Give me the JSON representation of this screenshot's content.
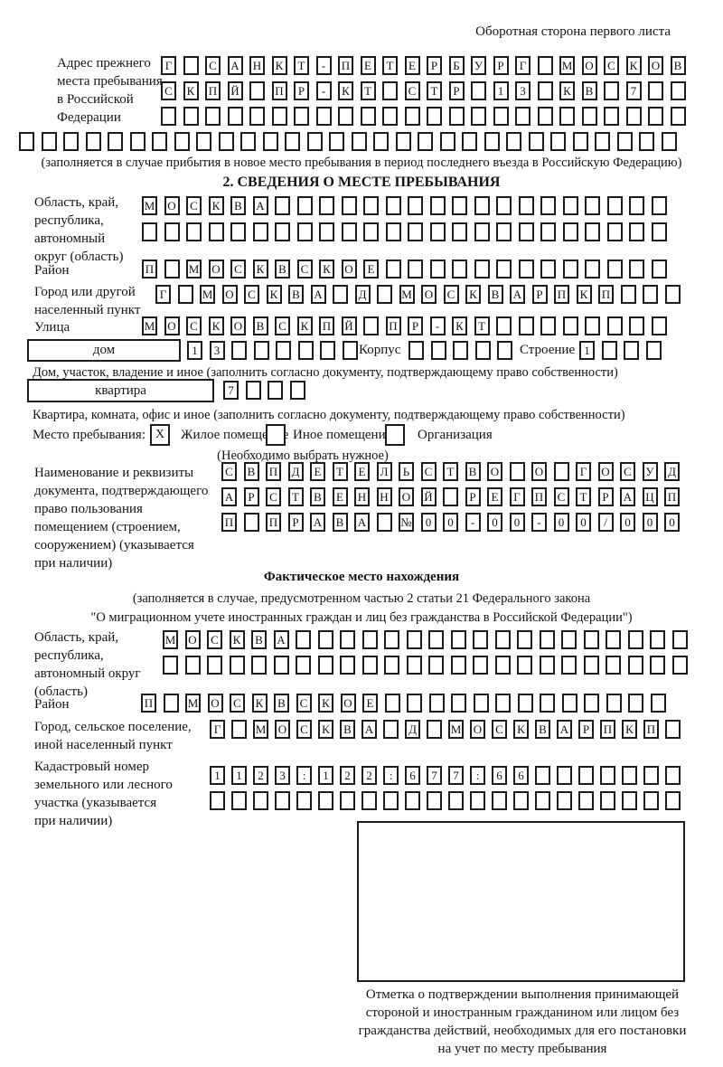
{
  "header": {
    "note": "Оборотная сторона первого листа"
  },
  "prev_address": {
    "label_lines": [
      "Адрес прежнего",
      "места пребывания",
      "в Российской",
      "Федерации"
    ],
    "row1": [
      "Г",
      "",
      "С",
      "А",
      "Н",
      "К",
      "Т",
      "-",
      "П",
      "Е",
      "Т",
      "Е",
      "Р",
      "Б",
      "У",
      "Р",
      "Г",
      "",
      "М",
      "О",
      "С",
      "К",
      "О",
      "В"
    ],
    "row2": [
      "С",
      "К",
      "П",
      "Й",
      "",
      "П",
      "Р",
      "-",
      "К",
      "Т",
      "",
      "С",
      "Т",
      "Р",
      "",
      "1",
      "3",
      "",
      "К",
      "В",
      "",
      "7",
      "",
      ""
    ],
    "row3": [
      "",
      "",
      "",
      "",
      "",
      "",
      "",
      "",
      "",
      "",
      "",
      "",
      "",
      "",
      "",
      "",
      "",
      "",
      "",
      "",
      "",
      "",
      "",
      ""
    ],
    "row4": [
      "",
      "",
      "",
      "",
      "",
      "",
      "",
      "",
      "",
      "",
      "",
      "",
      "",
      "",
      "",
      "",
      "",
      "",
      "",
      "",
      "",
      "",
      "",
      "",
      "",
      "",
      "",
      "",
      "",
      ""
    ],
    "note": "(заполняется в случае прибытия в новое место пребывания в период последнего въезда в Российскую Федерацию)"
  },
  "section2": {
    "title": "2. СВЕДЕНИЯ О МЕСТЕ ПРЕБЫВАНИЯ",
    "region": {
      "label_lines": [
        "Область, край,",
        "республика,",
        "автономный",
        "округ (область)"
      ],
      "row1": [
        "М",
        "О",
        "С",
        "К",
        "В",
        "А",
        "",
        "",
        "",
        "",
        "",
        "",
        "",
        "",
        "",
        "",
        "",
        "",
        "",
        "",
        "",
        "",
        "",
        ""
      ],
      "row2": [
        "",
        "",
        "",
        "",
        "",
        "",
        "",
        "",
        "",
        "",
        "",
        "",
        "",
        "",
        "",
        "",
        "",
        "",
        "",
        "",
        "",
        "",
        "",
        ""
      ]
    },
    "district": {
      "label": "Район",
      "row": [
        "П",
        "",
        "М",
        "О",
        "С",
        "К",
        "В",
        "С",
        "К",
        "О",
        "Е",
        "",
        "",
        "",
        "",
        "",
        "",
        "",
        "",
        "",
        "",
        "",
        "",
        ""
      ]
    },
    "city": {
      "label_lines": [
        "Город или другой",
        "населенный пункт"
      ],
      "row": [
        "Г",
        "",
        "М",
        "О",
        "С",
        "К",
        "В",
        "А",
        "",
        "Д",
        "",
        "М",
        "О",
        "С",
        "К",
        "В",
        "А",
        "Р",
        "П",
        "К",
        "П",
        "",
        "",
        ""
      ]
    },
    "street": {
      "label": "Улица",
      "row": [
        "М",
        "О",
        "С",
        "К",
        "О",
        "В",
        "С",
        "К",
        "П",
        "Й",
        "",
        "П",
        "Р",
        "-",
        "К",
        "Т",
        "",
        "",
        "",
        "",
        "",
        "",
        "",
        ""
      ]
    },
    "house": {
      "box_label": "дом",
      "cells": [
        "1",
        "3",
        "",
        "",
        "",
        "",
        "",
        ""
      ],
      "korpus_label": "Корпус",
      "korpus_cells": [
        "",
        "",
        "",
        "",
        ""
      ],
      "stroenie_label": "Строение",
      "stroenie_cells": [
        "1",
        "",
        "",
        ""
      ]
    },
    "house_note": "Дом, участок, владение и иное (заполнить согласно документу, подтверждающему право собственности)",
    "apartment": {
      "box_label": "квартира",
      "cells": [
        "7",
        "",
        "",
        ""
      ]
    },
    "apartment_note": "Квартира, комната, офис и иное (заполнить согласно документу, подтверждающему право собственности)",
    "stay_type": {
      "label": "Место пребывания:",
      "options": [
        {
          "label": "Жилое помещение",
          "mark": "X"
        },
        {
          "label": "Иное помещение",
          "mark": ""
        },
        {
          "label": "Организация",
          "mark": ""
        }
      ],
      "note": "(Необходимо выбрать нужное)"
    },
    "document": {
      "label_lines": [
        "Наименование и реквизиты",
        "документа, подтверждающего",
        "право пользования",
        "помещением (строением,",
        "сооружением) (указывается",
        "при наличии)"
      ],
      "row1": [
        "С",
        "В",
        "П",
        "Д",
        "Е",
        "Т",
        "Е",
        "Л",
        "Ь",
        "С",
        "Т",
        "В",
        "О",
        "",
        "О",
        "",
        "Г",
        "О",
        "С",
        "У",
        "Д"
      ],
      "row2": [
        "А",
        "Р",
        "С",
        "Т",
        "В",
        "Е",
        "Н",
        "Н",
        "О",
        "Й",
        "",
        "Р",
        "Е",
        "Г",
        "П",
        "С",
        "Т",
        "Р",
        "А",
        "Ц",
        "П"
      ],
      "row3": [
        "П",
        "",
        "П",
        "Р",
        "А",
        "В",
        "А",
        "",
        "№",
        "0",
        "0",
        "-",
        "0",
        "0",
        "-",
        "0",
        "0",
        "/",
        "0",
        "0",
        "0"
      ]
    }
  },
  "actual_location": {
    "title": "Фактическое место нахождения",
    "note_line1": "(заполняется в случае, предусмотренном частью 2 статьи 21 Федерального закона",
    "note_line2": "\"О миграционном учете иностранных граждан и лиц без гражданства в Российской Федерации\")",
    "region": {
      "label_lines": [
        "Область, край,",
        "республика,",
        "автономный округ",
        "(область)"
      ],
      "row1": [
        "М",
        "О",
        "С",
        "К",
        "В",
        "А",
        "",
        "",
        "",
        "",
        "",
        "",
        "",
        "",
        "",
        "",
        "",
        "",
        "",
        "",
        "",
        "",
        "",
        ""
      ],
      "row2": [
        "",
        "",
        "",
        "",
        "",
        "",
        "",
        "",
        "",
        "",
        "",
        "",
        "",
        "",
        "",
        "",
        "",
        "",
        "",
        "",
        "",
        "",
        "",
        ""
      ]
    },
    "district": {
      "label": "Район",
      "row": [
        "П",
        "",
        "М",
        "О",
        "С",
        "К",
        "В",
        "С",
        "К",
        "О",
        "Е",
        "",
        "",
        "",
        "",
        "",
        "",
        "",
        "",
        "",
        "",
        "",
        "",
        ""
      ]
    },
    "city": {
      "label_lines": [
        "Город, сельское поселение,",
        "иной населенный пункт"
      ],
      "row": [
        "Г",
        "",
        "М",
        "О",
        "С",
        "К",
        "В",
        "А",
        "",
        "Д",
        "",
        "М",
        "О",
        "С",
        "К",
        "В",
        "А",
        "Р",
        "П",
        "К",
        "П",
        ""
      ]
    },
    "cadastre": {
      "label_lines": [
        "Кадастровый номер",
        "земельного или лесного",
        "участка (указывается",
        "при наличии)"
      ],
      "row1": [
        "1",
        "1",
        "2",
        "3",
        ":",
        "1",
        "2",
        "2",
        ":",
        "6",
        "7",
        "7",
        ":",
        "6",
        "6",
        "",
        "",
        "",
        "",
        "",
        "",
        ""
      ],
      "row2": [
        "",
        "",
        "",
        "",
        "",
        "",
        "",
        "",
        "",
        "",
        "",
        "",
        "",
        "",
        "",
        "",
        "",
        "",
        "",
        "",
        "",
        ""
      ]
    }
  },
  "confirmation": {
    "caption_lines": [
      "Отметка о подтверждении выполнения принимающей",
      "стороной и иностранным гражданином или лицом без",
      "гражданства действий, необходимых для его постановки",
      "на учет по месту пребывания"
    ]
  }
}
